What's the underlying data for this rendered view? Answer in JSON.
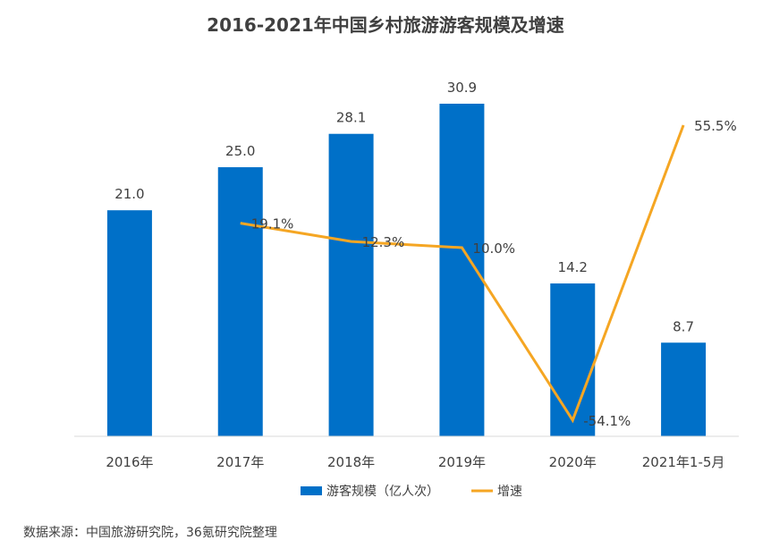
{
  "chart_data": {
    "type": "bar+line",
    "title": "2016-2021年中国乡村旅游游客规模及增速",
    "categories": [
      "2016年",
      "2017年",
      "2018年",
      "2019年",
      "2020年",
      "2021年1-5月"
    ],
    "series": [
      {
        "name": "游客规模（亿人次）",
        "type": "bar",
        "color": "#0070C8",
        "values": [
          21.0,
          25.0,
          28.1,
          30.9,
          14.2,
          8.7
        ],
        "labels": [
          "21.0",
          "25.0",
          "28.1",
          "30.9",
          "14.2",
          "8.7"
        ]
      },
      {
        "name": "增速",
        "type": "line",
        "color": "#F5A623",
        "values": [
          null,
          19.1,
          12.3,
          10.0,
          -54.1,
          55.5
        ],
        "labels": [
          "",
          "19.1%",
          "12.3%",
          "10.0%",
          "-54.1%",
          "55.5%"
        ]
      }
    ],
    "bar_axis_range": [
      0,
      32
    ],
    "line_axis_range": [
      -60,
      60
    ],
    "grid": false,
    "legend_position": "bottom"
  },
  "source_note": "数据来源：中国旅游研究院，36氪研究院整理"
}
